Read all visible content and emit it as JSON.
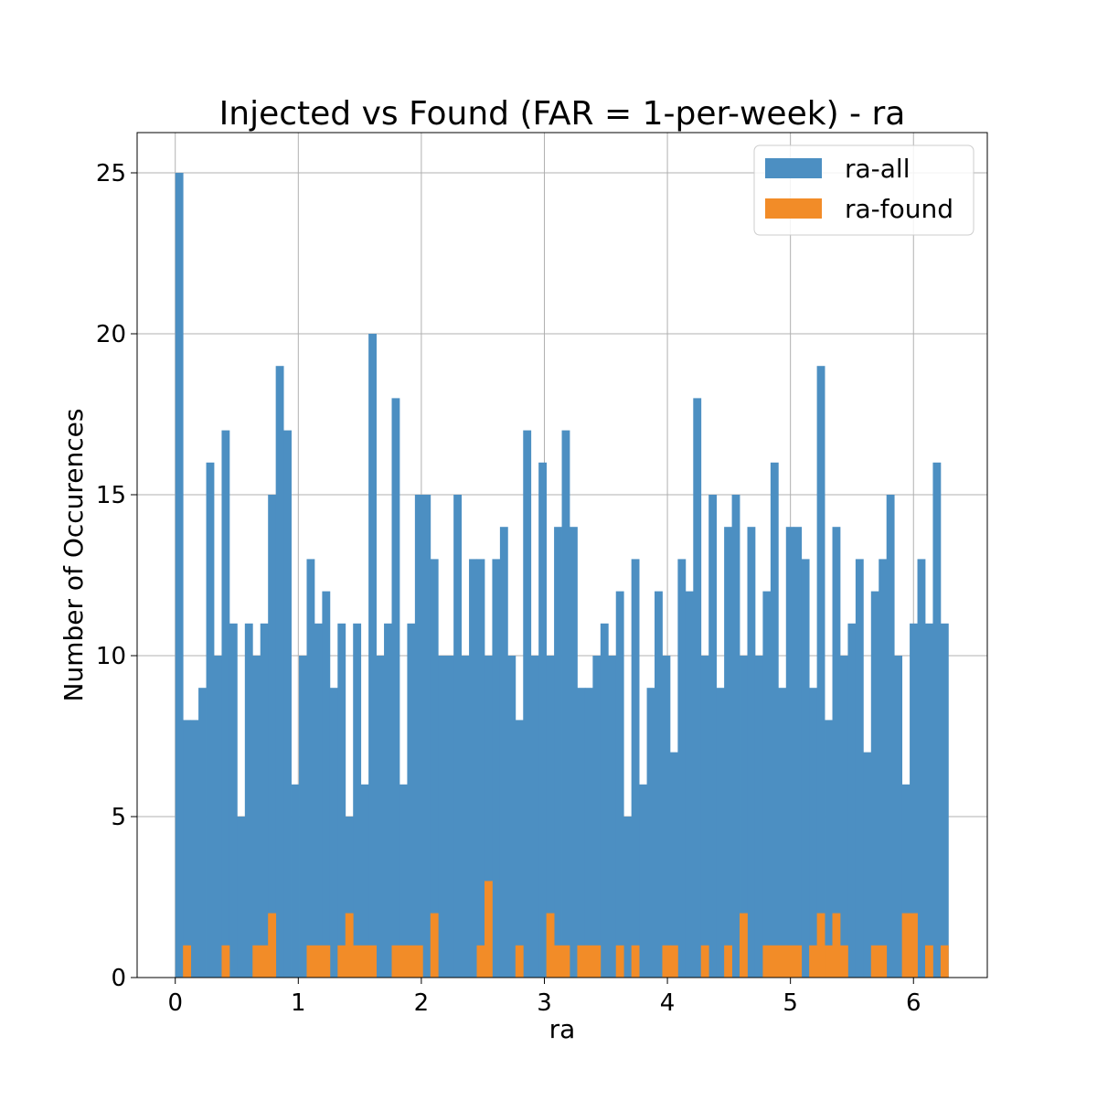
{
  "chart_data": {
    "type": "bar",
    "title": "Injected vs Found (FAR = 1-per-week) - ra",
    "xlabel": "ra",
    "ylabel": "Number of Occurences",
    "xlim": [
      -0.31,
      6.6
    ],
    "ylim": [
      0,
      26.25
    ],
    "xticks": [
      0,
      1,
      2,
      3,
      4,
      5,
      6
    ],
    "yticks": [
      0,
      5,
      10,
      15,
      20,
      25
    ],
    "grid": true,
    "legend_position": "top-right",
    "bins": {
      "start": 0.0,
      "end": 6.2832,
      "count": 100
    },
    "series": [
      {
        "name": "ra-all",
        "color": "#4c8fc2",
        "values": [
          25,
          8,
          8,
          9,
          16,
          10,
          17,
          11,
          5,
          11,
          10,
          11,
          15,
          19,
          17,
          6,
          10,
          13,
          11,
          12,
          9,
          11,
          5,
          11,
          6,
          20,
          10,
          11,
          18,
          6,
          11,
          15,
          15,
          13,
          10,
          10,
          15,
          10,
          13,
          13,
          10,
          13,
          14,
          10,
          8,
          17,
          10,
          16,
          10,
          14,
          17,
          14,
          9,
          9,
          10,
          11,
          10,
          12,
          5,
          13,
          6,
          9,
          12,
          10,
          7,
          13,
          12,
          18,
          10,
          15,
          9,
          14,
          15,
          10,
          14,
          10,
          12,
          16,
          9,
          14,
          14,
          13,
          9,
          19,
          8,
          14,
          10,
          11,
          13,
          7,
          12,
          13,
          15,
          10,
          6,
          11,
          13,
          11,
          16,
          11
        ]
      },
      {
        "name": "ra-found",
        "color": "#f28c28",
        "values": [
          0,
          1,
          0,
          0,
          0,
          0,
          1,
          0,
          0,
          0,
          1,
          1,
          2,
          0,
          0,
          0,
          0,
          1,
          1,
          1,
          0,
          1,
          2,
          1,
          1,
          1,
          0,
          0,
          1,
          1,
          1,
          1,
          0,
          2,
          0,
          0,
          0,
          0,
          0,
          1,
          3,
          0,
          0,
          0,
          1,
          0,
          0,
          0,
          2,
          1,
          1,
          0,
          1,
          1,
          1,
          0,
          0,
          1,
          0,
          1,
          0,
          0,
          0,
          1,
          1,
          0,
          0,
          0,
          1,
          0,
          0,
          1,
          0,
          2,
          0,
          0,
          1,
          1,
          1,
          1,
          1,
          0,
          1,
          2,
          1,
          2,
          1,
          0,
          0,
          0,
          1,
          1,
          0,
          0,
          2,
          2,
          0,
          1,
          0,
          1
        ]
      }
    ]
  }
}
